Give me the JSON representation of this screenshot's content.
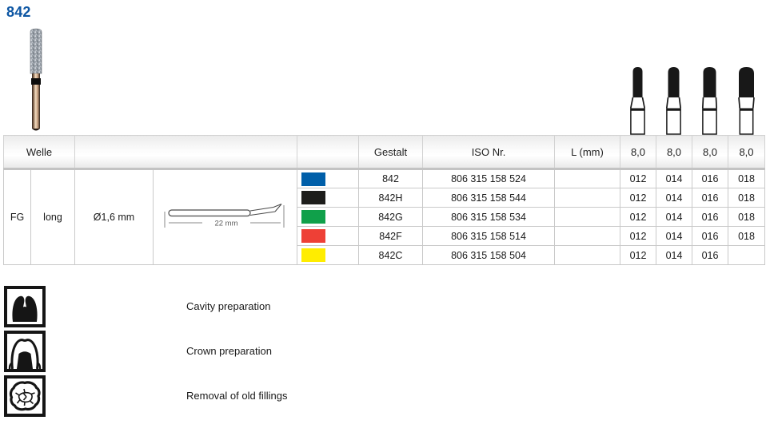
{
  "page": {
    "title": "842",
    "title_color": "#0d56a3"
  },
  "table": {
    "header": {
      "welle": "Welle",
      "gestalt": "Gestalt",
      "iso": "ISO Nr.",
      "l_mm": "L (mm)",
      "l_values": [
        "8,0",
        "8,0",
        "8,0",
        "8,0"
      ]
    },
    "shank": {
      "type": "FG",
      "length": "long",
      "diameter": "Ø1,6 mm",
      "total_length_label": "22 mm"
    },
    "rows": [
      {
        "color_name": "blue",
        "color": "#005fa9",
        "figure": "842",
        "iso": "806 315 158 524",
        "sizes": [
          "012",
          "014",
          "016",
          "018"
        ]
      },
      {
        "color_name": "black",
        "color": "#1d1d1b",
        "figure": "842H",
        "iso": "806 315 158 544",
        "sizes": [
          "012",
          "014",
          "016",
          "018"
        ]
      },
      {
        "color_name": "green",
        "color": "#10a04a",
        "figure": "842G",
        "iso": "806 315 158 534",
        "sizes": [
          "012",
          "014",
          "016",
          "018"
        ]
      },
      {
        "color_name": "red",
        "color": "#ee4036",
        "figure": "842F",
        "iso": "806 315 158 514",
        "sizes": [
          "012",
          "014",
          "016",
          "018"
        ]
      },
      {
        "color_name": "yellow",
        "color": "#ffed00",
        "figure": "842C",
        "iso": "806 315 158 504",
        "sizes": [
          "012",
          "014",
          "016",
          ""
        ]
      }
    ]
  },
  "applications": [
    {
      "icon": "cavity-preparation-icon",
      "label": "Cavity preparation"
    },
    {
      "icon": "crown-preparation-icon",
      "label": "Crown preparation"
    },
    {
      "icon": "filling-removal-icon",
      "label": "Removal of old fillings"
    }
  ]
}
